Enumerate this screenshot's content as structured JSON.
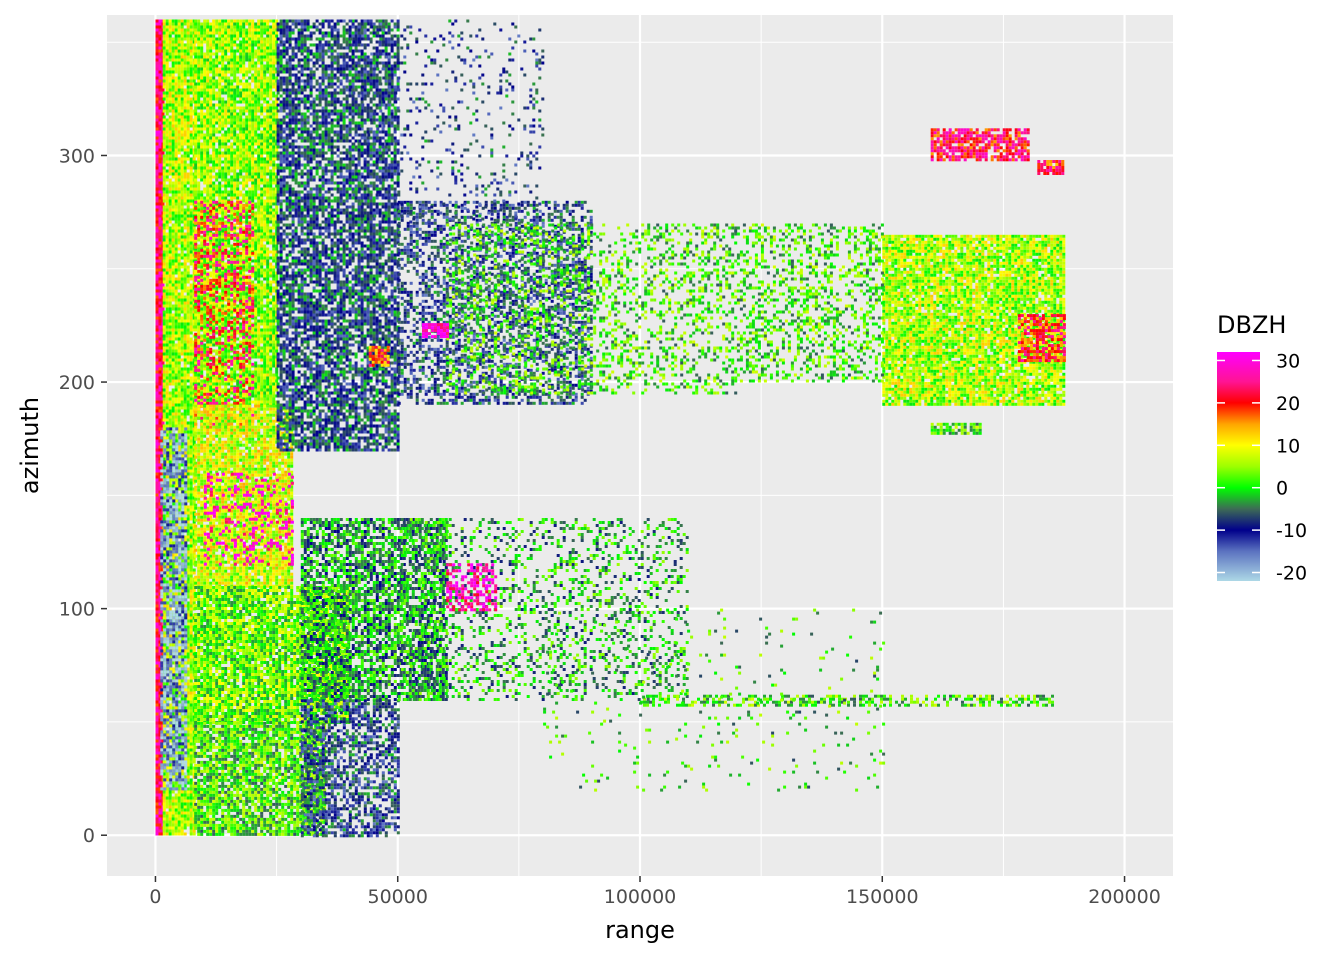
{
  "chart_data": {
    "type": "heatmap",
    "title": "",
    "xlabel": "range",
    "ylabel": "azimuth",
    "xlim": [
      -10000,
      210000
    ],
    "ylim": [
      -18,
      362
    ],
    "x_ticks": [
      {
        "value": 0,
        "label": "0"
      },
      {
        "value": 50000,
        "label": "50000"
      },
      {
        "value": 100000,
        "label": "100000"
      },
      {
        "value": 150000,
        "label": "150000"
      },
      {
        "value": 200000,
        "label": "200000"
      }
    ],
    "y_ticks": [
      {
        "value": 0,
        "label": "0"
      },
      {
        "value": 100,
        "label": "100"
      },
      {
        "value": 200,
        "label": "200"
      },
      {
        "value": 300,
        "label": "300"
      }
    ],
    "grid": true,
    "data_extent": {
      "range": [
        0,
        187500
      ],
      "azimuth": [
        0,
        360
      ]
    },
    "legend": {
      "title": "DBZH",
      "position": "right",
      "ticks": [
        {
          "value": 30,
          "label": "30"
        },
        {
          "value": 20,
          "label": "20"
        },
        {
          "value": 10,
          "label": "10"
        },
        {
          "value": 0,
          "label": "0"
        },
        {
          "value": -10,
          "label": "-10"
        },
        {
          "value": -20,
          "label": "-20"
        }
      ],
      "range": [
        -22,
        32
      ],
      "colors": [
        {
          "value": -22,
          "color": "#add8e6"
        },
        {
          "value": -15,
          "color": "#5b72c0"
        },
        {
          "value": -10,
          "color": "#00008b"
        },
        {
          "value": -5,
          "color": "#3d6b55"
        },
        {
          "value": 0,
          "color": "#00ff00"
        },
        {
          "value": 5,
          "color": "#9dff00"
        },
        {
          "value": 10,
          "color": "#ffff00"
        },
        {
          "value": 15,
          "color": "#ffa500"
        },
        {
          "value": 20,
          "color": "#ff0000"
        },
        {
          "value": 25,
          "color": "#ff1493"
        },
        {
          "value": 32,
          "color": "#ff00ff"
        }
      ]
    },
    "regions": [
      {
        "range": [
          0,
          1500
        ],
        "azimuth": [
          0,
          360
        ],
        "dbzh": 24,
        "density": 1.0
      },
      {
        "range": [
          1500,
          8000
        ],
        "azimuth": [
          0,
          360
        ],
        "dbzh": 6,
        "density": 0.95
      },
      {
        "range": [
          1000,
          6000
        ],
        "azimuth": [
          20,
          180
        ],
        "dbzh": -18,
        "density": 0.7
      },
      {
        "range": [
          8000,
          25000
        ],
        "azimuth": [
          190,
          360
        ],
        "dbzh": 5,
        "density": 0.92
      },
      {
        "range": [
          8000,
          20000
        ],
        "azimuth": [
          180,
          280
        ],
        "dbzh": 22,
        "density": 0.35
      },
      {
        "range": [
          8000,
          28000
        ],
        "azimuth": [
          110,
          190
        ],
        "dbzh": 8,
        "density": 0.9
      },
      {
        "range": [
          10000,
          28000
        ],
        "azimuth": [
          120,
          160
        ],
        "dbzh": 30,
        "density": 0.25
      },
      {
        "range": [
          8000,
          40000
        ],
        "azimuth": [
          50,
          110
        ],
        "dbzh": 3,
        "density": 0.9
      },
      {
        "range": [
          8000,
          35000
        ],
        "azimuth": [
          0,
          50
        ],
        "dbzh": 1,
        "density": 0.85
      },
      {
        "range": [
          25000,
          50000
        ],
        "azimuth": [
          170,
          360
        ],
        "dbzh": -8,
        "density": 0.75
      },
      {
        "range": [
          30000,
          60000
        ],
        "azimuth": [
          60,
          140
        ],
        "dbzh": -3,
        "density": 0.7
      },
      {
        "range": [
          30000,
          50000
        ],
        "azimuth": [
          0,
          60
        ],
        "dbzh": -9,
        "density": 0.6
      },
      {
        "range": [
          50000,
          90000
        ],
        "azimuth": [
          190,
          280
        ],
        "dbzh": -9,
        "density": 0.5
      },
      {
        "range": [
          60000,
          120000
        ],
        "azimuth": [
          195,
          270
        ],
        "dbzh": 1,
        "density": 0.3
      },
      {
        "range": [
          50000,
          110000
        ],
        "azimuth": [
          60,
          140
        ],
        "dbzh": -2,
        "density": 0.25
      },
      {
        "range": [
          40000,
          80000
        ],
        "azimuth": [
          270,
          360
        ],
        "dbzh": -9,
        "density": 0.12
      },
      {
        "range": [
          150000,
          187500
        ],
        "azimuth": [
          190,
          265
        ],
        "dbzh": 6,
        "density": 0.9
      },
      {
        "range": [
          120000,
          150000
        ],
        "azimuth": [
          200,
          270
        ],
        "dbzh": 1,
        "density": 0.35
      },
      {
        "range": [
          178000,
          187500
        ],
        "azimuth": [
          210,
          230
        ],
        "dbzh": 20,
        "density": 0.7
      },
      {
        "range": [
          160000,
          180000
        ],
        "azimuth": [
          298,
          312
        ],
        "dbzh": 22,
        "density": 0.8
      },
      {
        "range": [
          182000,
          187500
        ],
        "azimuth": [
          292,
          298
        ],
        "dbzh": 20,
        "density": 0.8
      },
      {
        "range": [
          55000,
          60000
        ],
        "azimuth": [
          220,
          226
        ],
        "dbzh": 30,
        "density": 0.9
      },
      {
        "range": [
          44000,
          48000
        ],
        "azimuth": [
          208,
          216
        ],
        "dbzh": 18,
        "density": 0.9
      },
      {
        "range": [
          60000,
          70000
        ],
        "azimuth": [
          100,
          120
        ],
        "dbzh": 28,
        "density": 0.5
      },
      {
        "range": [
          100000,
          185000
        ],
        "azimuth": [
          58,
          62
        ],
        "dbzh": 1,
        "density": 0.5
      },
      {
        "range": [
          80000,
          150000
        ],
        "azimuth": [
          20,
          100
        ],
        "dbzh": 0,
        "density": 0.04
      },
      {
        "range": [
          160000,
          170000
        ],
        "azimuth": [
          178,
          182
        ],
        "dbzh": 2,
        "density": 0.8
      }
    ]
  }
}
